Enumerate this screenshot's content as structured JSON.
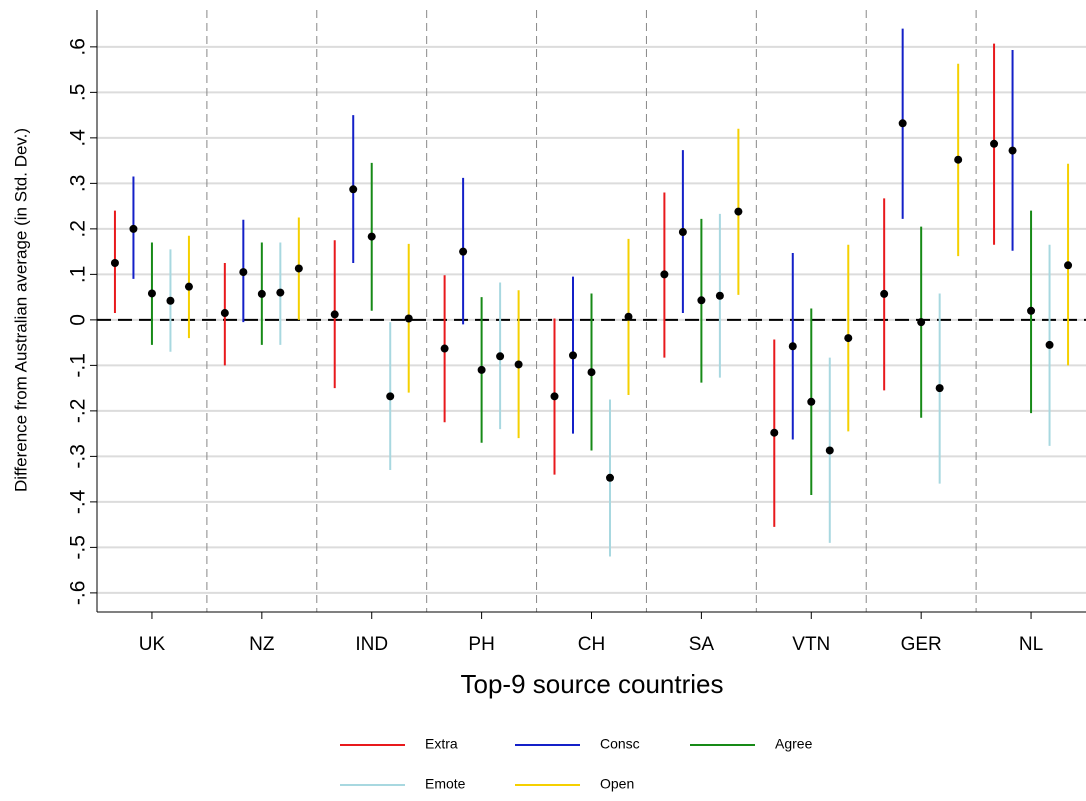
{
  "chart_data": {
    "type": "errorbar",
    "x_label": "Top-9 source countries",
    "y_label": "Difference from Australian average (in Std. Dev.)",
    "categories": [
      "UK",
      "NZ",
      "IND",
      "PH",
      "CH",
      "SA",
      "VTN",
      "GER",
      "NL"
    ],
    "ylim": [
      -0.642,
      0.681
    ],
    "yticks": [
      {
        "value": 0.6,
        "label": ".6"
      },
      {
        "value": 0.5,
        "label": ".5"
      },
      {
        "value": 0.4,
        "label": ".4"
      },
      {
        "value": 0.3,
        "label": ".3"
      },
      {
        "value": 0.2,
        "label": ".2"
      },
      {
        "value": 0.1,
        "label": ".1"
      },
      0,
      {
        "value": -0.1,
        "label": "-.1"
      },
      {
        "value": -0.2,
        "label": "-.2"
      },
      {
        "value": -0.3,
        "label": "-.3"
      },
      {
        "value": -0.4,
        "label": "-.4"
      },
      {
        "value": -0.5,
        "label": "-.5"
      },
      {
        "value": -0.6,
        "label": "-.6"
      }
    ],
    "grid": true,
    "reference_line": 0,
    "legend_position": "bottom",
    "series": [
      {
        "name": "Extra",
        "color": "#e8191c",
        "values": [
          0.125,
          0.015,
          0.012,
          -0.063,
          -0.168,
          0.1,
          -0.248,
          0.057,
          0.387
        ],
        "lower": [
          0.015,
          -0.1,
          -0.15,
          -0.225,
          -0.34,
          -0.083,
          -0.455,
          -0.155,
          0.165
        ],
        "upper": [
          0.24,
          0.125,
          0.175,
          0.098,
          0.003,
          0.28,
          -0.043,
          0.267,
          0.607
        ]
      },
      {
        "name": "Consc",
        "color": "#1420c8",
        "values": [
          0.2,
          0.105,
          0.287,
          0.15,
          -0.078,
          0.193,
          -0.058,
          0.432,
          0.372
        ],
        "lower": [
          0.09,
          -0.005,
          0.125,
          -0.01,
          -0.25,
          0.015,
          -0.263,
          0.222,
          0.152
        ],
        "upper": [
          0.315,
          0.22,
          0.45,
          0.312,
          0.095,
          0.373,
          0.147,
          0.64,
          0.593
        ]
      },
      {
        "name": "Agree",
        "color": "#178a17",
        "values": [
          0.058,
          0.057,
          0.183,
          -0.11,
          -0.115,
          0.043,
          -0.18,
          -0.005,
          0.02
        ],
        "lower": [
          -0.055,
          -0.055,
          0.02,
          -0.27,
          -0.287,
          -0.138,
          -0.385,
          -0.215,
          -0.205
        ],
        "upper": [
          0.17,
          0.17,
          0.345,
          0.05,
          0.058,
          0.222,
          0.025,
          0.205,
          0.24
        ]
      },
      {
        "name": "Emote",
        "color": "#a8d8e0",
        "values": [
          0.042,
          0.06,
          -0.168,
          -0.08,
          -0.347,
          0.053,
          -0.287,
          -0.15,
          -0.055
        ],
        "lower": [
          -0.07,
          -0.055,
          -0.33,
          -0.24,
          -0.52,
          -0.127,
          -0.49,
          -0.36,
          -0.277
        ],
        "upper": [
          0.155,
          0.17,
          -0.005,
          0.082,
          -0.175,
          0.233,
          -0.083,
          0.058,
          0.165
        ]
      },
      {
        "name": "Open",
        "color": "#f5d000",
        "values": [
          0.073,
          0.113,
          0.003,
          -0.098,
          0.007,
          0.238,
          -0.04,
          0.352,
          0.12
        ],
        "lower": [
          -0.04,
          0.0,
          -0.16,
          -0.26,
          -0.165,
          0.055,
          -0.245,
          0.14,
          -0.1
        ],
        "upper": [
          0.185,
          0.225,
          0.167,
          0.065,
          0.178,
          0.42,
          0.165,
          0.563,
          0.343
        ]
      }
    ]
  }
}
